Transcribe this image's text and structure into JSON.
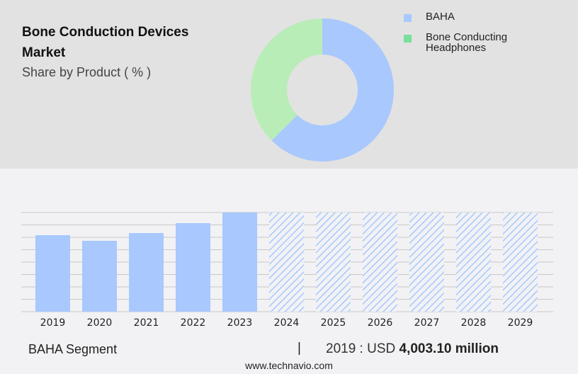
{
  "title": "Bone Conduction Devices Market",
  "subtitle": "Share by Product ( % )",
  "colors": {
    "baha": "#a8c8fe",
    "headphones_donut": "#b8edb8",
    "headphones_legend": "#77e09a",
    "grid": "#c8c8c8"
  },
  "legend": [
    {
      "label": "BAHA",
      "color": "#a8c8fe"
    },
    {
      "label": "Bone Conducting Headphones",
      "color": "#77e09a"
    }
  ],
  "chart_data": [
    {
      "type": "pie",
      "donut": true,
      "slices": [
        {
          "name": "BAHA",
          "value": 62.5,
          "color": "#a8c8fe"
        },
        {
          "name": "Bone Conducting Headphones",
          "value": 37.5,
          "color": "#b8edb8"
        }
      ]
    },
    {
      "type": "bar",
      "categories": [
        "2019",
        "2020",
        "2021",
        "2022",
        "2023",
        "2024",
        "2025",
        "2026",
        "2027",
        "2028",
        "2029"
      ],
      "values": [
        4003.1,
        3707,
        4115,
        4633,
        5189,
        null,
        null,
        null,
        null,
        null,
        null
      ],
      "forecast_from": "2024",
      "forecast_style": "hatched",
      "ylim": [
        0,
        5189
      ],
      "grid": true,
      "xlabel": "",
      "ylabel": ""
    }
  ],
  "footer": {
    "segment": "BAHA Segment",
    "separator": "|",
    "value_prefix": "2019 : USD",
    "value": "4,003.10 million",
    "website": "www.technavio.com"
  }
}
